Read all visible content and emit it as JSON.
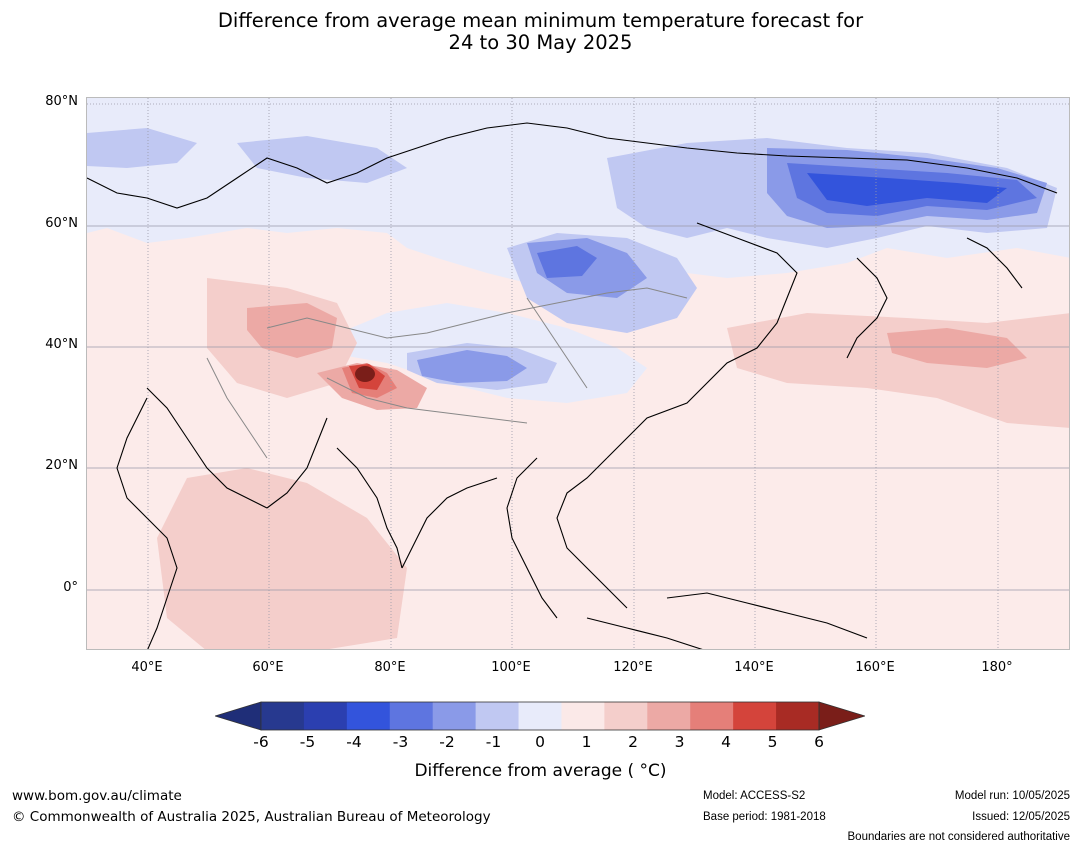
{
  "title_line1": "Difference from average mean minimum temperature forecast for",
  "title_line2": "24 to 30 May 2025",
  "lat_labels": [
    "80°N",
    "60°N",
    "40°N",
    "20°N",
    "0°"
  ],
  "lon_labels": [
    "40°E",
    "60°E",
    "80°E",
    "100°E",
    "120°E",
    "140°E",
    "160°E",
    "180°"
  ],
  "colorbar": {
    "ticks": [
      "-6",
      "-5",
      "-4",
      "-3",
      "-2",
      "-1",
      "0",
      "1",
      "2",
      "3",
      "4",
      "5",
      "6"
    ],
    "colors": [
      "#27398f",
      "#2b3fb0",
      "#3354dc",
      "#5e75e0",
      "#8a9ae8",
      "#c0c8f2",
      "#e8ebfa",
      "#fbe9e8",
      "#f4cecb",
      "#eca9a5",
      "#e57f79",
      "#d4443b",
      "#a82b24"
    ],
    "under_color": "#1f2e78",
    "over_color": "#7a1e19",
    "label": "Difference from average ( °C)"
  },
  "map_colors": {
    "ocean": "#fcebea",
    "light_blue": "#e8ebfa",
    "blue2": "#c0c8f2",
    "blue3": "#8a9ae8",
    "blue4": "#5e75e0",
    "blue5": "#3354dc",
    "pink2": "#f4cecb",
    "pink3": "#eca9a5",
    "red4": "#e57f79",
    "red5": "#d4443b",
    "dark_red": "#7a1e19"
  },
  "footer": {
    "website": "www.bom.gov.au/climate",
    "copyright": "© Commonwealth of Australia 2025, Australian Bureau of Meteorology",
    "model": "Model: ACCESS-S2",
    "base_period": "Base period: 1981-2018",
    "model_run": "Model run: 10/05/2025",
    "issued": "Issued: 12/05/2025",
    "disclaimer": "Boundaries are not considered authoritative"
  }
}
